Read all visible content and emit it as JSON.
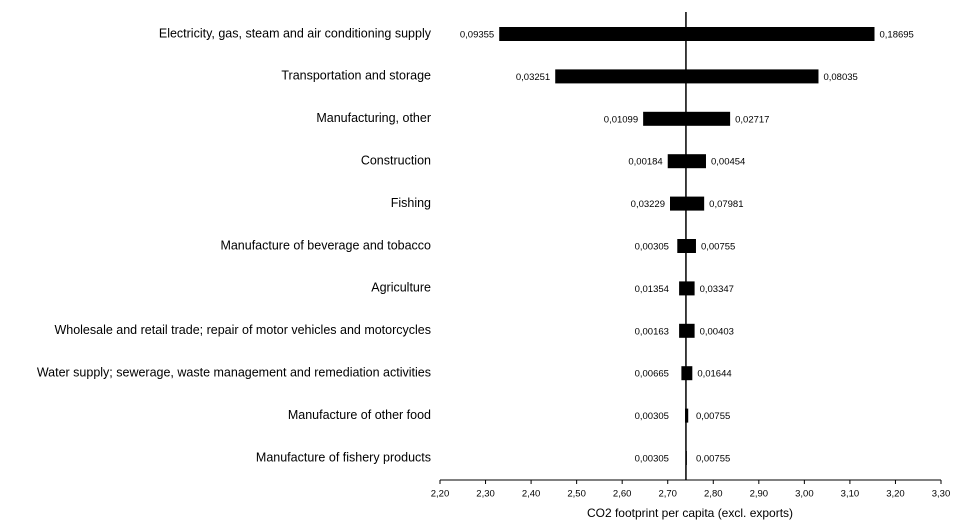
{
  "chart_data": {
    "type": "tornado",
    "categories": [
      "Electricity, gas, steam and air conditioning supply",
      "Transportation and storage",
      "Manufacturing, other",
      "Construction",
      "Fishing",
      "Manufacture of beverage and tobacco",
      "Agriculture",
      "Wholesale and retail trade; repair of motor vehicles and motorcycles",
      "Water supply; sewerage, waste management and remediation activities",
      "Manufacture of other food",
      "Manufacture of fishery products"
    ],
    "low": [
      2.33,
      2.453,
      2.646,
      2.7,
      2.705,
      2.721,
      2.725,
      2.725,
      2.73,
      2.738,
      2.74
    ],
    "high": [
      3.154,
      3.031,
      2.837,
      2.784,
      2.78,
      2.762,
      2.759,
      2.759,
      2.754,
      2.745,
      2.742
    ],
    "low_labels": [
      "0,09355",
      "0,03251",
      "0,01099",
      "0,00184",
      "0,03229",
      "0,00305",
      "0,01354",
      "0,00163",
      "0,00665",
      "0,00305",
      "0,00305"
    ],
    "high_labels": [
      "0,18695",
      "0,08035",
      "0,02717",
      "0,00454",
      "0,07981",
      "0,00755",
      "0,03347",
      "0,00403",
      "0,01644",
      "0,00755",
      "0,00755"
    ],
    "base": 2.74,
    "color": "#000000",
    "xlabel": "CO2 footprint per capita (excl. exports)",
    "xlim": [
      2.2,
      3.3
    ],
    "xticks": [
      {
        "value": 2.2,
        "label": "2,20"
      },
      {
        "value": 2.3,
        "label": "2,30"
      },
      {
        "value": 2.4,
        "label": "2,40"
      },
      {
        "value": 2.5,
        "label": "2,50"
      },
      {
        "value": 2.6,
        "label": "2,60"
      },
      {
        "value": 2.7,
        "label": "2,70"
      },
      {
        "value": 2.8,
        "label": "2,80"
      },
      {
        "value": 2.9,
        "label": "2,90"
      },
      {
        "value": 3.0,
        "label": "3,00"
      },
      {
        "value": 3.1,
        "label": "3,10"
      },
      {
        "value": 3.2,
        "label": "3,20"
      },
      {
        "value": 3.3,
        "label": "3,30"
      }
    ]
  }
}
